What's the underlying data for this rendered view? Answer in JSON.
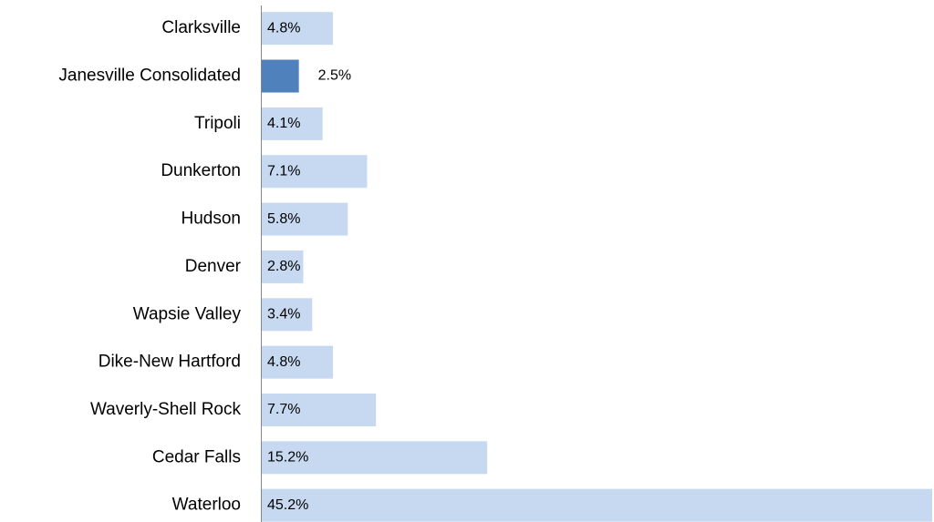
{
  "chart_data": {
    "type": "bar",
    "orientation": "horizontal",
    "categories": [
      "Clarksville",
      "Janesville Consolidated",
      "Tripoli",
      "Dunkerton",
      "Hudson",
      "Denver",
      "Wapsie Valley",
      "Dike-New Hartford",
      "Waverly-Shell Rock",
      "Cedar Falls",
      "Waterloo"
    ],
    "values": [
      4.8,
      2.5,
      4.1,
      7.1,
      5.8,
      2.8,
      3.4,
      4.8,
      7.7,
      15.2,
      45.2
    ],
    "value_labels": [
      "4.8%",
      "2.5%",
      "4.1%",
      "7.1%",
      "5.8%",
      "2.8%",
      "3.4%",
      "4.8%",
      "7.7%",
      "15.2%",
      "45.2%"
    ],
    "color": "#c6d9f1",
    "highlight": "Janesville Consolidated",
    "highlight_color": "#4f81bd"
  }
}
